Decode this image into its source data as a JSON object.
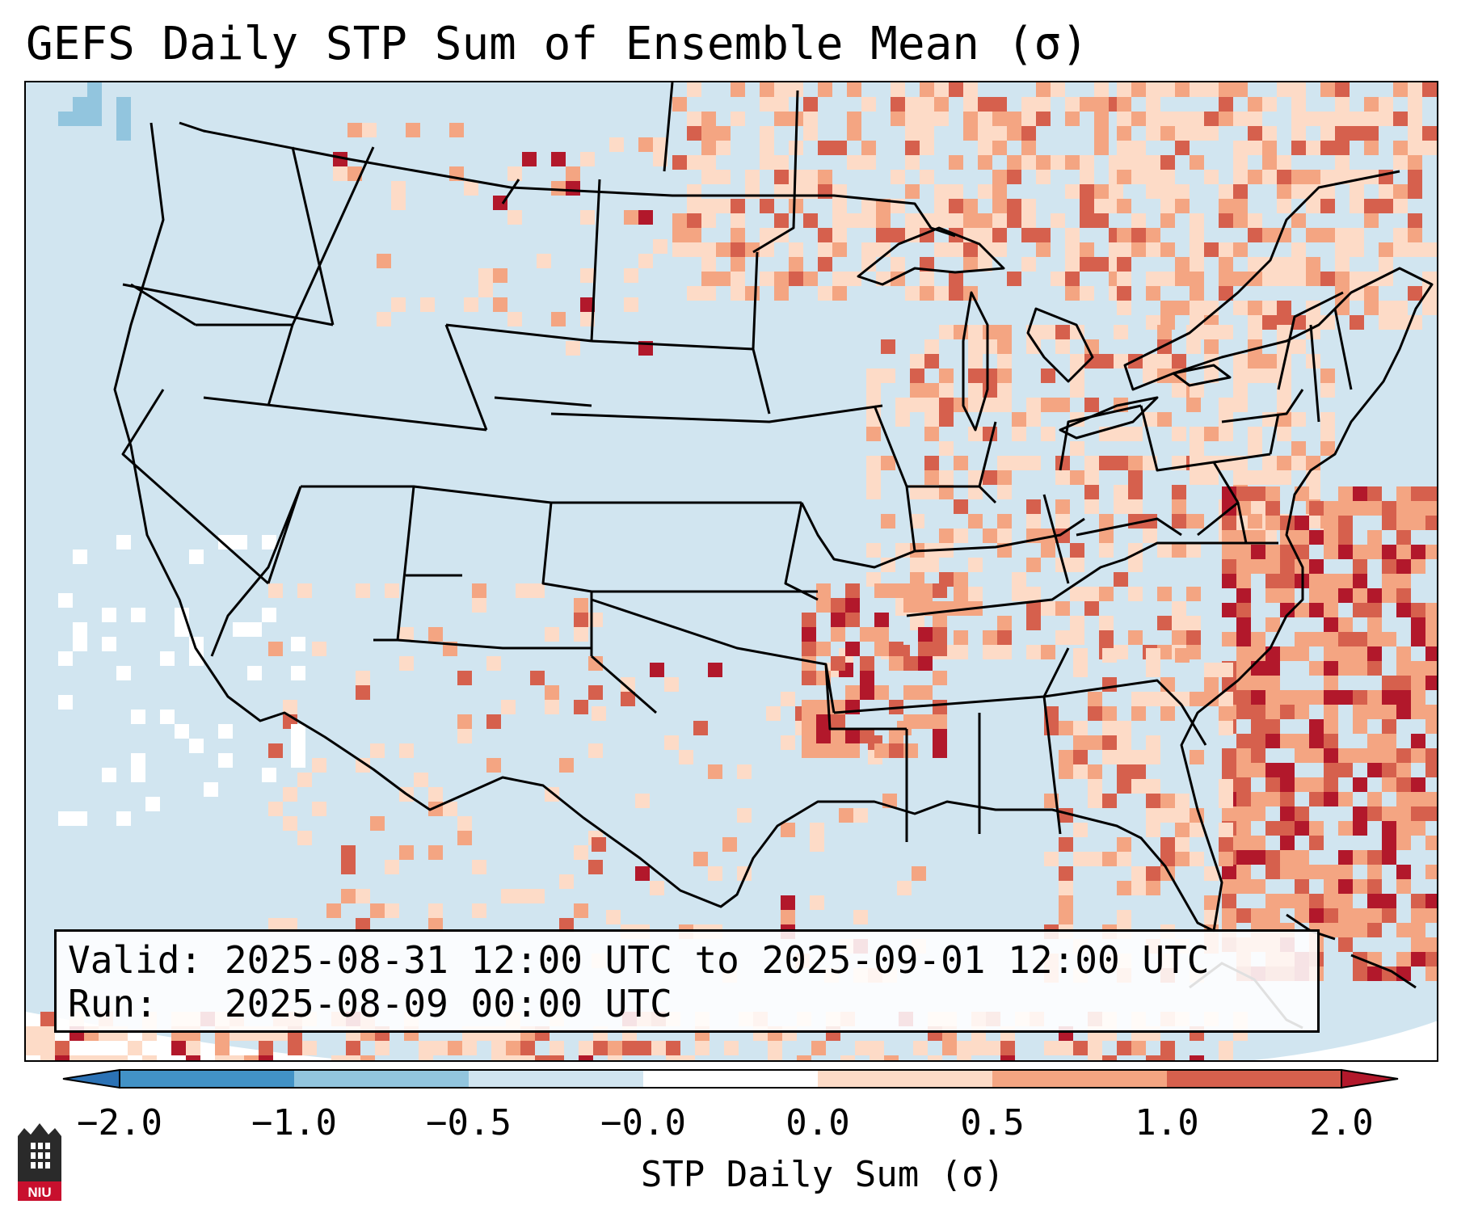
{
  "title": "GEFS Daily STP Sum of Ensemble Mean (σ)",
  "info": {
    "valid_label": "Valid:",
    "valid_value": "2025-08-31 12:00 UTC to 2025-09-01 12:00 UTC",
    "run_label": "Run:",
    "run_value": "2025-08-09 00:00 UTC"
  },
  "colorbar": {
    "label": "STP Daily Sum (σ)",
    "ticks": [
      "−2.0",
      "−1.0",
      "−0.5",
      "−0.0",
      "0.0",
      "0.5",
      "1.0",
      "2.0"
    ],
    "bins": [
      {
        "range": "< -2.0",
        "color": "#2b72b5"
      },
      {
        "range": "-2.0 to -1.0",
        "color": "#4292c6"
      },
      {
        "range": "-1.0 to -0.5",
        "color": "#92c5de"
      },
      {
        "range": "-0.5 to -0.0",
        "color": "#d1e5f0"
      },
      {
        "range": "-0.0 to 0.0",
        "color": "#ffffff"
      },
      {
        "range": "0.0 to 0.5",
        "color": "#fddbc7"
      },
      {
        "range": "0.5 to 1.0",
        "color": "#f4a582"
      },
      {
        "range": "1.0 to 2.0",
        "color": "#d6604d"
      },
      {
        "range": "> 2.0",
        "color": "#b2182b"
      }
    ]
  },
  "logo": {
    "text": "NIU",
    "color": "#c8102e"
  },
  "colors": {
    "background": "#d1e5f0",
    "border": "#000000"
  }
}
